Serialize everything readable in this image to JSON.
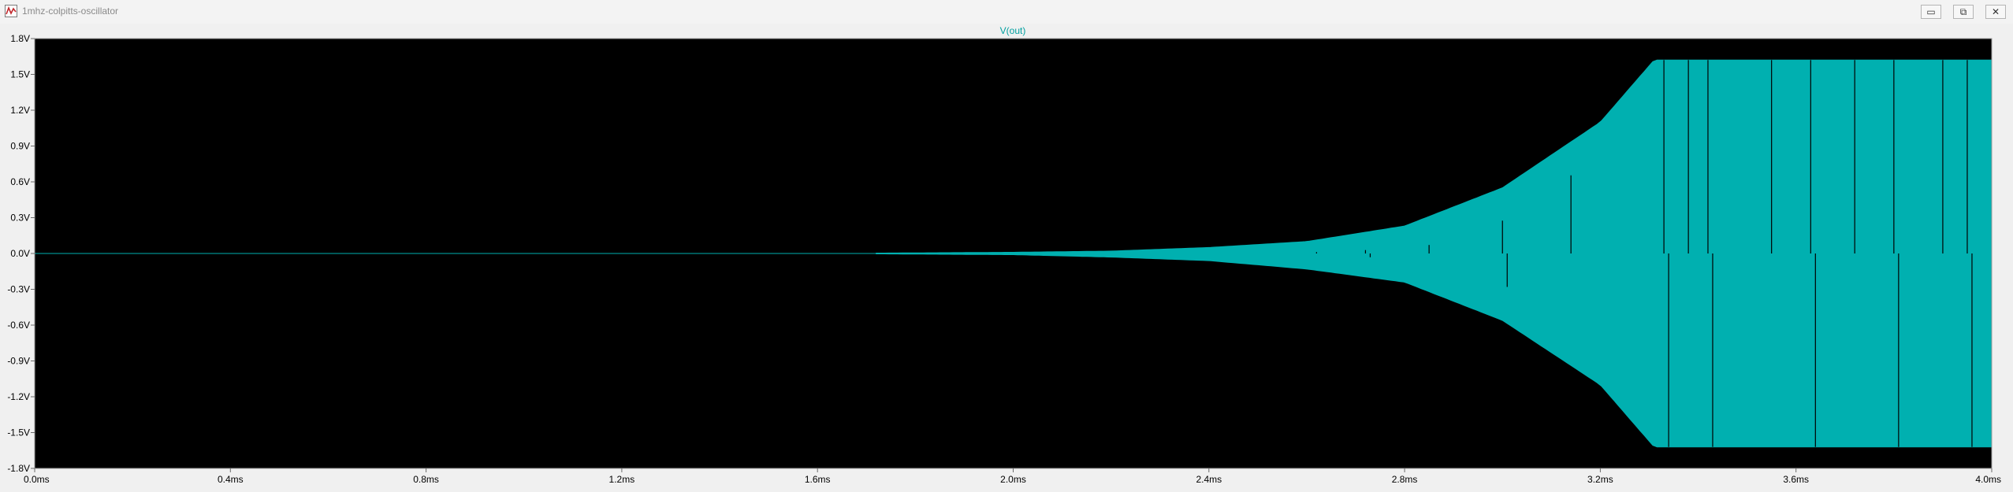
{
  "window": {
    "title": "1mhz-colpitts-oscillator",
    "icons": {
      "app": "waveform-app-icon",
      "minimize": "minimize-icon",
      "restore": "restore-icon",
      "close": "close-icon"
    },
    "buttons": {
      "minimize": "▭",
      "restore": "⧉",
      "close": "✕"
    }
  },
  "colors": {
    "background": "#000000",
    "trace": "#00b0b0",
    "axis_text": "#ffffff",
    "frame": "#ffffff",
    "window_bg": "#f0f0f0"
  },
  "chart_data": {
    "type": "line",
    "title": "V(out)",
    "xlabel": "",
    "ylabel": "",
    "x_ticks": [
      "0.0ms",
      "0.4ms",
      "0.8ms",
      "1.2ms",
      "1.6ms",
      "2.0ms",
      "2.4ms",
      "2.8ms",
      "3.2ms",
      "3.6ms",
      "4.0ms"
    ],
    "y_ticks": [
      "1.8V",
      "1.5V",
      "1.2V",
      "0.9V",
      "0.6V",
      "0.3V",
      "0.0V",
      "-0.3V",
      "-0.6V",
      "-0.9V",
      "-1.2V",
      "-1.5V",
      "-1.8V"
    ],
    "xlim": [
      0,
      4.0
    ],
    "ylim": [
      -1.8,
      1.8
    ],
    "grid": false,
    "series": [
      {
        "name": "V(out)",
        "envelope_time_ms": [
          0.0,
          1.72,
          2.0,
          2.2,
          2.4,
          2.6,
          2.8,
          3.0,
          3.2,
          3.31,
          3.6,
          4.0
        ],
        "envelope_upper_V": [
          0.0,
          0.003,
          0.01,
          0.02,
          0.05,
          0.1,
          0.23,
          0.55,
          1.1,
          1.62,
          1.62,
          1.62
        ],
        "envelope_lower_V": [
          0.0,
          -0.003,
          -0.01,
          -0.03,
          -0.06,
          -0.13,
          -0.24,
          -0.56,
          -1.1,
          -1.62,
          -1.62,
          -1.62
        ]
      }
    ]
  }
}
